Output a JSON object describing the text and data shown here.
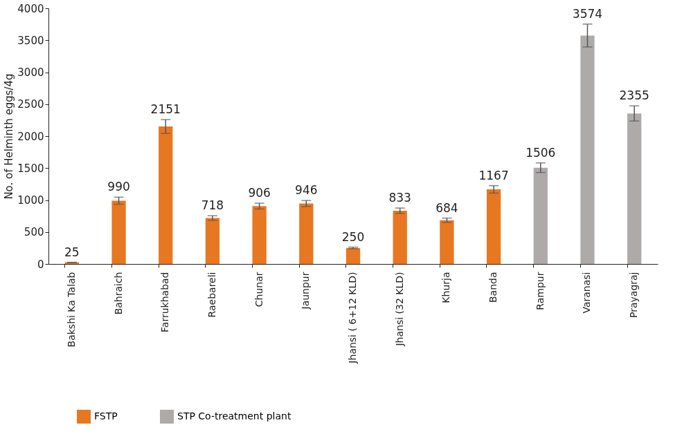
{
  "chart_data": {
    "type": "bar",
    "ylabel": "No. of Helminth eggs/4g",
    "categories": [
      "Bakshi Ka Talab",
      "Bahraich",
      "Farrukhabad",
      "Raebareli",
      "Chunar",
      "Jaunpur",
      "Jhansi ( 6+12 KLD)",
      "Jhansi (32 KLD)",
      "Khurja",
      "Banda",
      "Rampur",
      "Varanasi",
      "Prayagraj"
    ],
    "series": [
      {
        "name": "FSTP",
        "color": "#e87722",
        "values": [
          25,
          990,
          2151,
          718,
          906,
          946,
          250,
          833,
          684,
          1167,
          null,
          null,
          null
        ],
        "errors": [
          1,
          55,
          108,
          36,
          45,
          47,
          13,
          42,
          34,
          58,
          null,
          null,
          null
        ]
      },
      {
        "name": "STP Co-treatment plant",
        "color": "#aeaaaa",
        "values": [
          null,
          null,
          null,
          null,
          null,
          null,
          null,
          null,
          null,
          null,
          1506,
          3574,
          2355
        ],
        "errors": [
          null,
          null,
          null,
          null,
          null,
          null,
          null,
          null,
          null,
          null,
          75,
          179,
          118
        ]
      }
    ],
    "ylim": [
      0,
      4000
    ],
    "yticks": [
      0,
      500,
      1000,
      1500,
      2000,
      2500,
      3000,
      3500,
      4000
    ],
    "data_labels": true,
    "grid": false,
    "legend": "bottom left"
  }
}
